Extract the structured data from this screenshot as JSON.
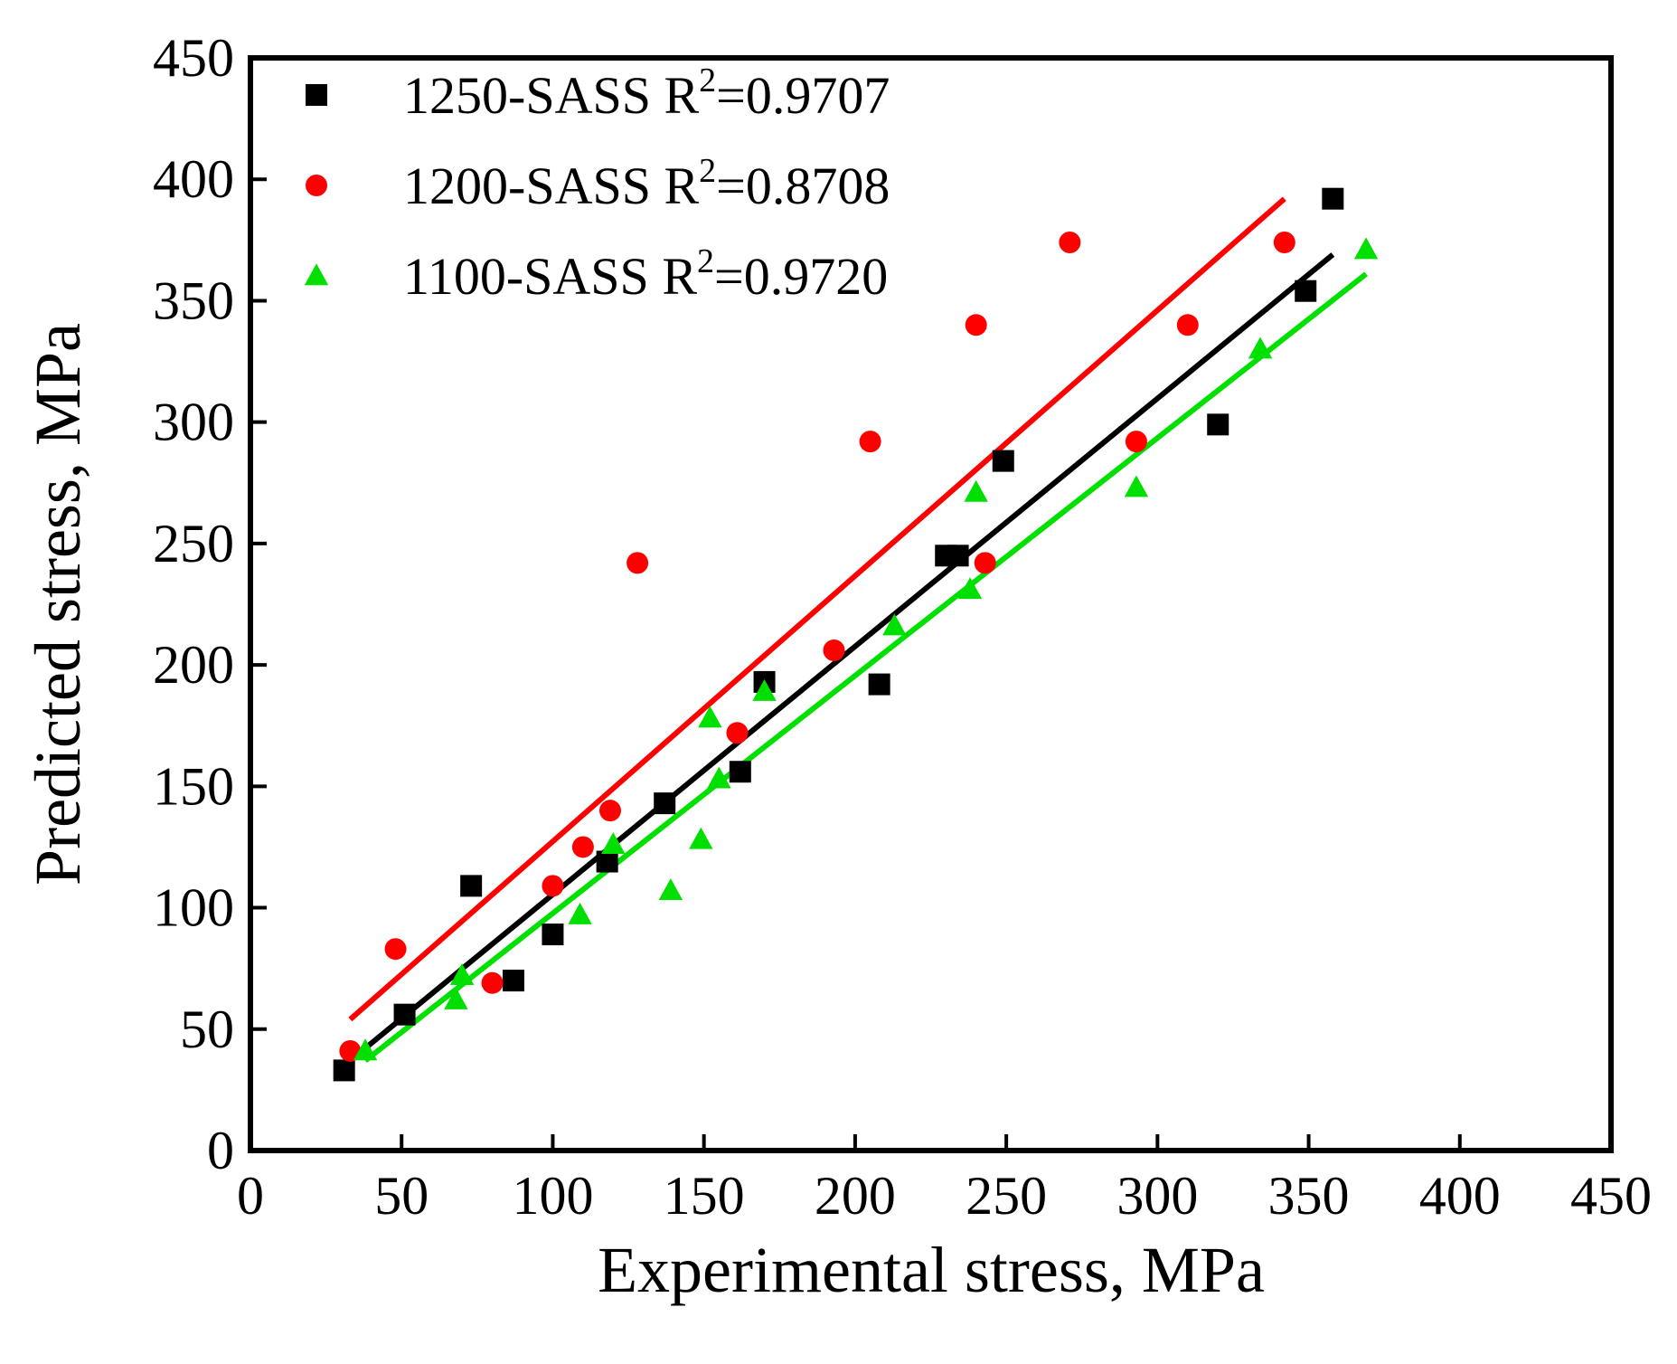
{
  "chart_data": {
    "type": "scatter",
    "title": "",
    "xlabel": "Experimental stress, MPa",
    "ylabel": "Predicted stress, MPa",
    "xlim": [
      0,
      450
    ],
    "ylim": [
      0,
      450
    ],
    "xticks": [
      0,
      50,
      100,
      150,
      200,
      250,
      300,
      350,
      400,
      450
    ],
    "yticks": [
      0,
      50,
      100,
      150,
      200,
      250,
      300,
      350,
      400,
      450
    ],
    "grid": false,
    "legend_position": "top-left",
    "series": [
      {
        "name": "1250-SASS",
        "r2_prefix": "R",
        "r2_sup": "2",
        "r2_value": "=0.9707",
        "marker": "square",
        "color": "#000000",
        "points": [
          [
            31,
            33
          ],
          [
            51,
            56
          ],
          [
            73,
            109
          ],
          [
            87,
            70
          ],
          [
            100,
            89
          ],
          [
            118,
            119
          ],
          [
            137,
            143
          ],
          [
            162,
            156
          ],
          [
            170,
            193
          ],
          [
            208,
            192
          ],
          [
            230,
            245
          ],
          [
            234,
            245
          ],
          [
            249,
            284
          ],
          [
            320,
            299
          ],
          [
            349,
            354
          ],
          [
            358,
            392
          ]
        ],
        "fit": [
          [
            31,
            35
          ],
          [
            358,
            369
          ]
        ]
      },
      {
        "name": "1200-SASS",
        "r2_prefix": "R",
        "r2_sup": "2",
        "r2_value": "=0.8708",
        "marker": "circle",
        "color": "#ff0000",
        "points": [
          [
            33,
            41
          ],
          [
            48,
            83
          ],
          [
            80,
            69
          ],
          [
            100,
            109
          ],
          [
            110,
            125
          ],
          [
            119,
            140
          ],
          [
            128,
            242
          ],
          [
            161,
            172
          ],
          [
            193,
            206
          ],
          [
            205,
            292
          ],
          [
            240,
            340
          ],
          [
            243,
            242
          ],
          [
            271,
            374
          ],
          [
            293,
            292
          ],
          [
            310,
            340
          ],
          [
            342,
            374
          ]
        ],
        "fit": [
          [
            33,
            54
          ],
          [
            342,
            392
          ]
        ]
      },
      {
        "name": "1100-SASS",
        "r2_prefix": "R",
        "r2_sup": "2",
        "r2_value": "=0.9720",
        "marker": "triangle",
        "color": "#00e000",
        "points": [
          [
            38,
            41
          ],
          [
            68,
            62
          ],
          [
            70,
            72
          ],
          [
            109,
            97
          ],
          [
            120,
            126
          ],
          [
            139,
            107
          ],
          [
            149,
            128
          ],
          [
            152,
            178
          ],
          [
            155,
            153
          ],
          [
            170,
            189
          ],
          [
            213,
            216
          ],
          [
            238,
            231
          ],
          [
            240,
            271
          ],
          [
            293,
            273
          ],
          [
            334,
            330
          ],
          [
            369,
            371
          ]
        ],
        "fit": [
          [
            38,
            37
          ],
          [
            369,
            361
          ]
        ]
      }
    ]
  }
}
